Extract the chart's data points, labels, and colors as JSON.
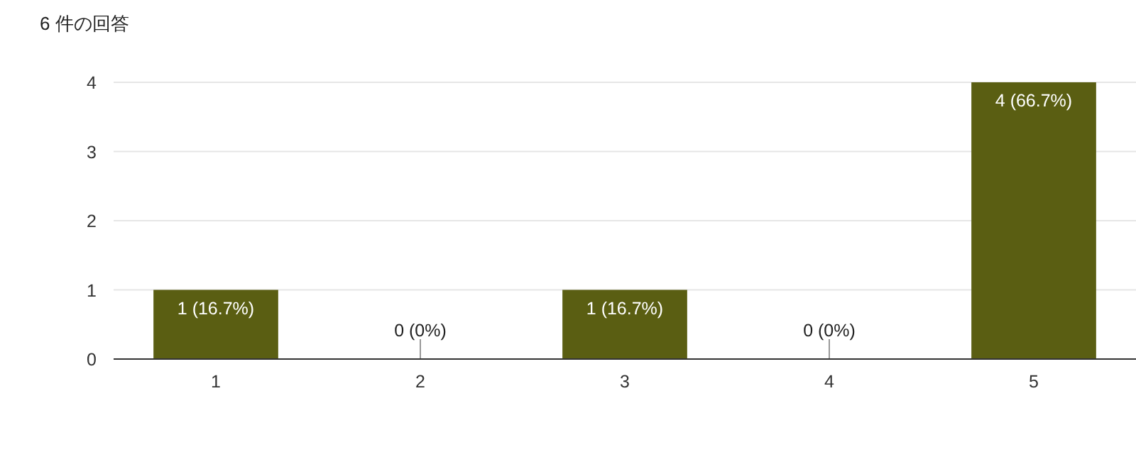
{
  "chart_data": {
    "type": "bar",
    "title": "6 件の回答",
    "categories": [
      "1",
      "2",
      "3",
      "4",
      "5"
    ],
    "values": [
      1,
      0,
      1,
      0,
      4
    ],
    "color": "#5a5e12",
    "value_labels": [
      "1 (16.7%)",
      "0 (0%)",
      "1 (16.7%)",
      "0 (0%)",
      "4 (66.7%)"
    ],
    "ylim": [
      0,
      4
    ],
    "yticks": [
      0,
      1,
      2,
      3,
      4
    ],
    "grid": "y"
  }
}
